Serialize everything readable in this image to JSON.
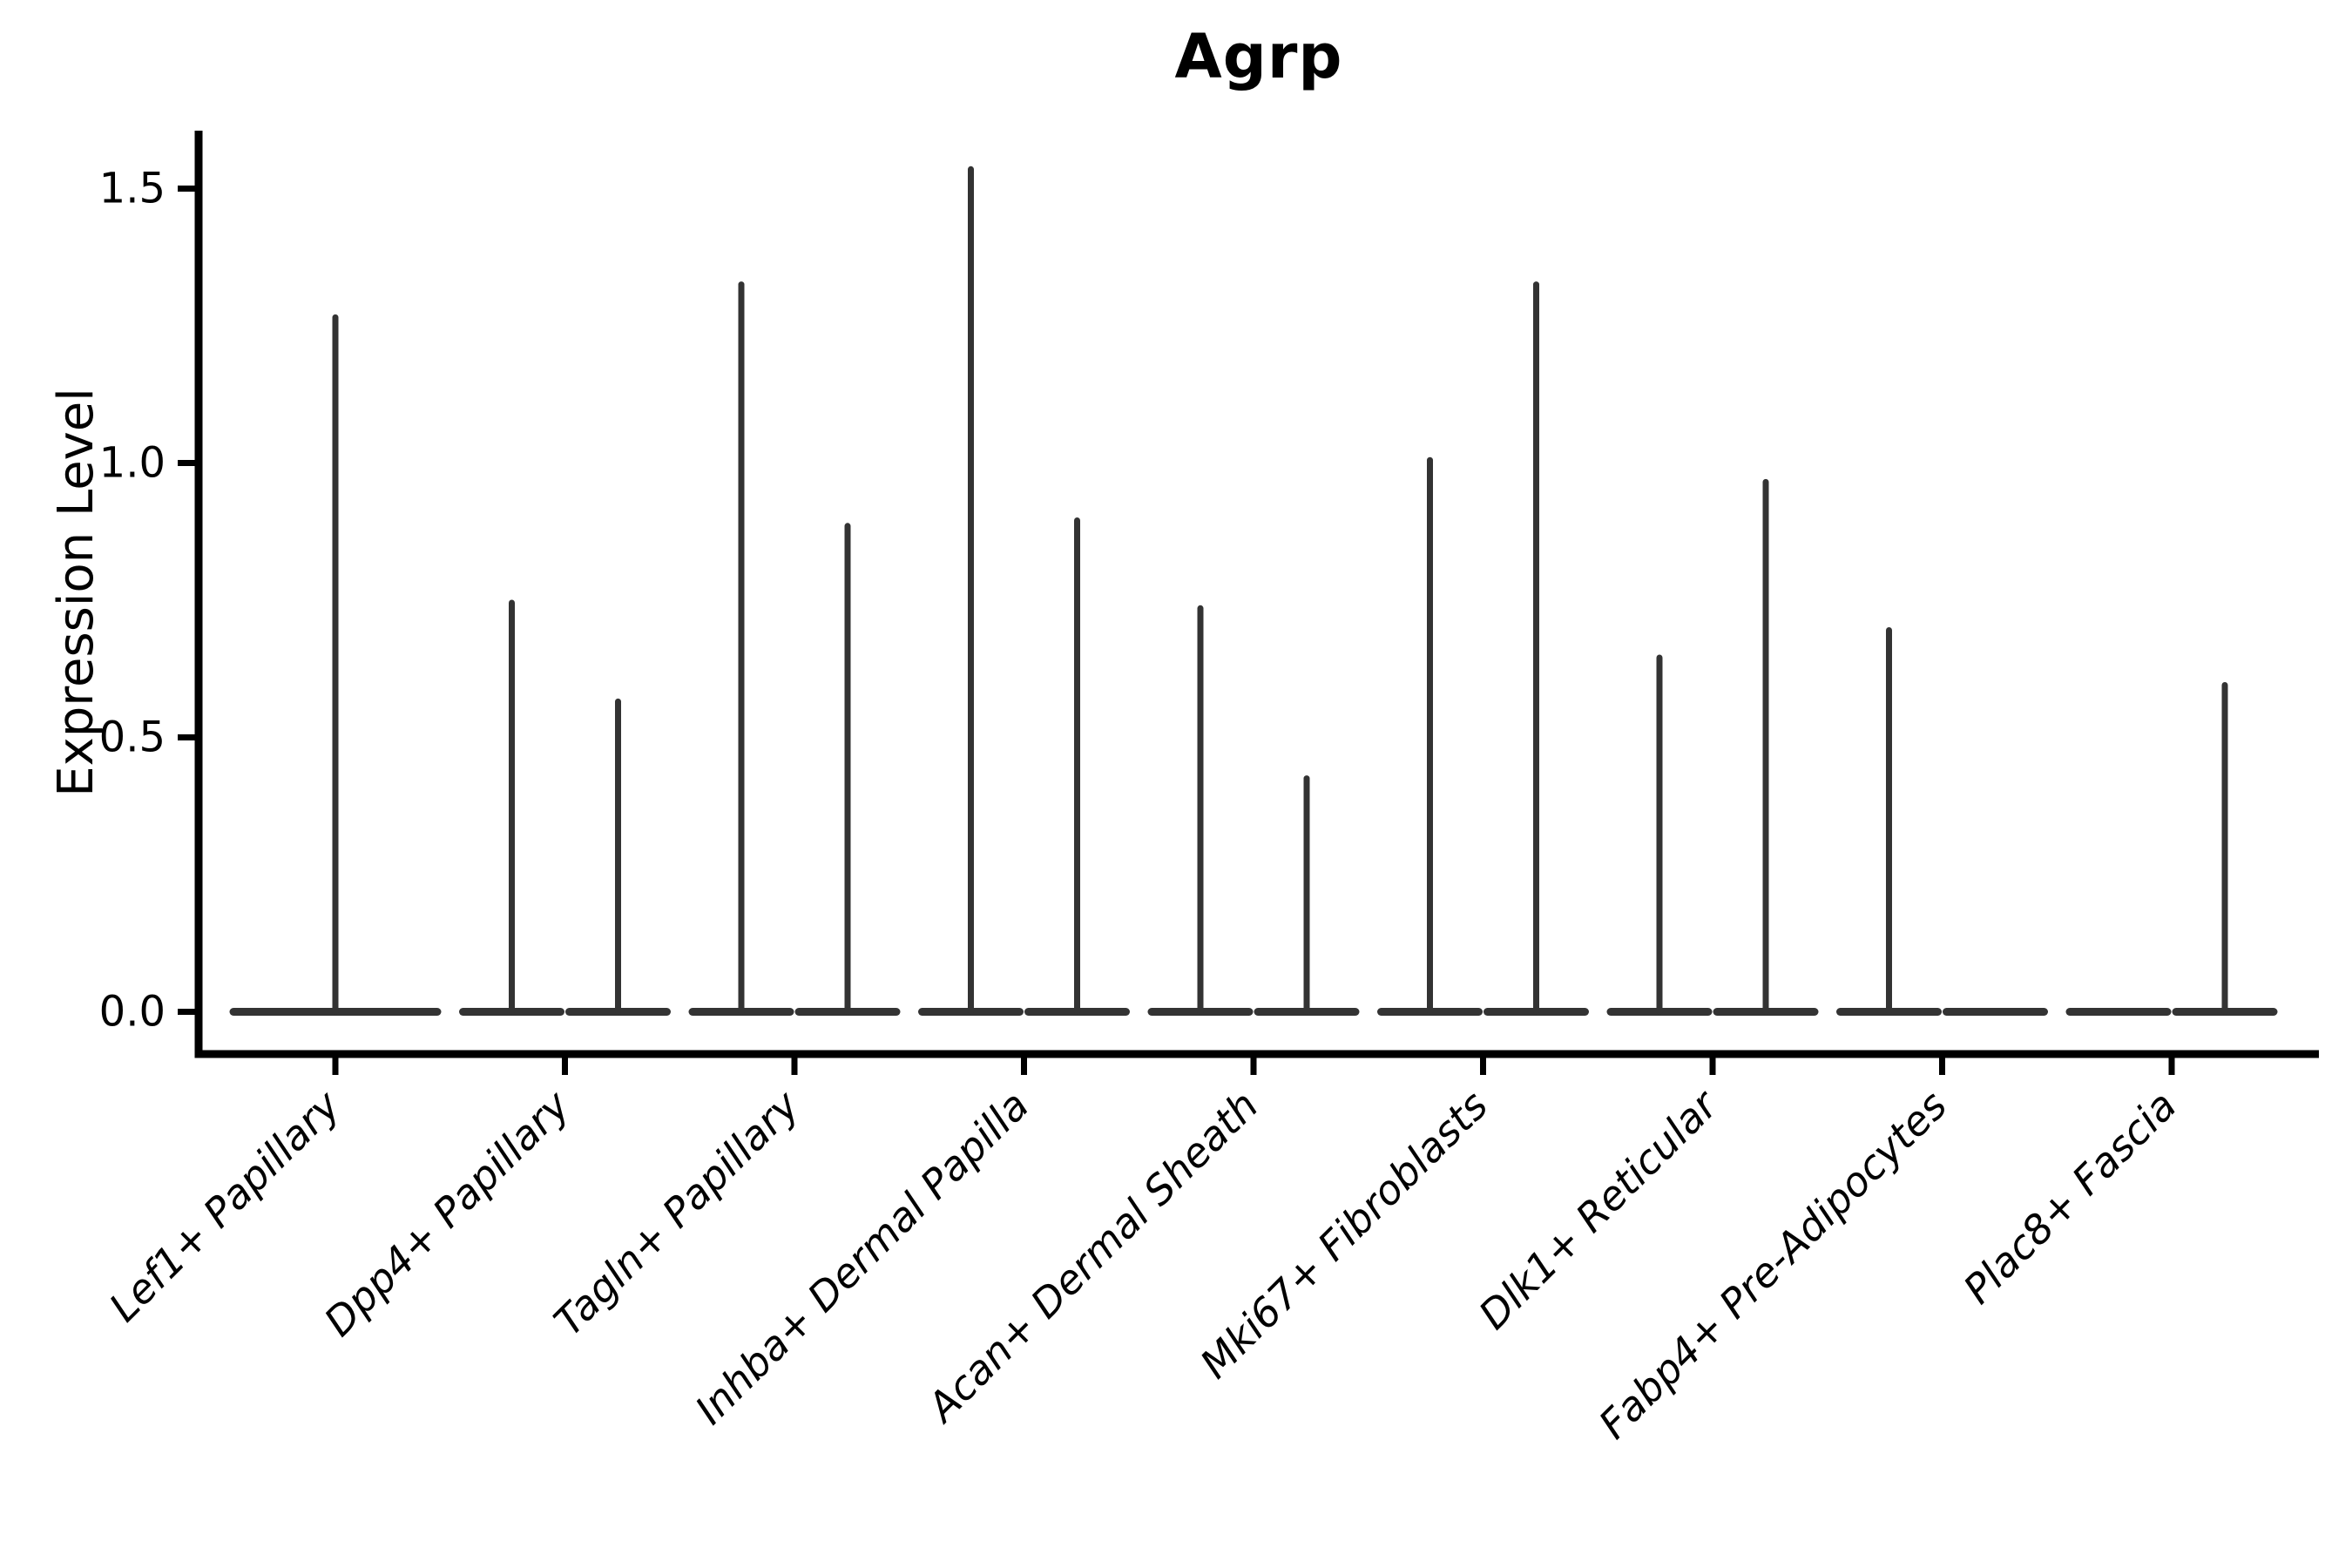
{
  "figure": {
    "background_color": "#ffffff"
  },
  "chart_data": {
    "type": "violin",
    "title": "Agrp",
    "xlabel": "",
    "ylabel": "Expression Level",
    "ylim": [
      -0.08,
      1.61
    ],
    "yticks": [
      {
        "value": 0.0,
        "label": "0.0"
      },
      {
        "value": 0.5,
        "label": "0.5"
      },
      {
        "value": 1.0,
        "label": "1.0"
      },
      {
        "value": 1.5,
        "label": "1.5"
      }
    ],
    "grid": "off",
    "legend": "none",
    "x_tick_label_rotation_deg": 45,
    "x_tick_labels_italic": true,
    "categories": [
      "Lef1+ Papillary",
      "Dpp4+ Papillary",
      "Tagln+ Papillary",
      "Inhba+ Dermal Papilla",
      "Acan+ Dermal Sheath",
      "Mki67+ Fibroblasts",
      "Dlk1+ Reticular",
      "Fabp4+ Pre-Adipocytes",
      "Plac8+ Fascia"
    ],
    "violins": [
      {
        "category": "Lef1+ Papillary",
        "parts": [
          {
            "slot": "full",
            "max": 1.27
          }
        ]
      },
      {
        "category": "Dpp4+ Papillary",
        "parts": [
          {
            "slot": "left",
            "max": 0.75
          },
          {
            "slot": "right",
            "max": 0.57
          }
        ]
      },
      {
        "category": "Tagln+ Papillary",
        "parts": [
          {
            "slot": "left",
            "max": 1.33
          },
          {
            "slot": "right",
            "max": 0.89
          }
        ]
      },
      {
        "category": "Inhba+ Dermal Papilla",
        "parts": [
          {
            "slot": "left",
            "max": 1.54
          },
          {
            "slot": "right",
            "max": 0.9
          }
        ]
      },
      {
        "category": "Acan+ Dermal Sheath",
        "parts": [
          {
            "slot": "left",
            "max": 0.74
          },
          {
            "slot": "right",
            "max": 0.43
          }
        ]
      },
      {
        "category": "Mki67+ Fibroblasts",
        "parts": [
          {
            "slot": "left",
            "max": 1.01
          },
          {
            "slot": "right",
            "max": 1.33
          }
        ]
      },
      {
        "category": "Dlk1+ Reticular",
        "parts": [
          {
            "slot": "left",
            "max": 0.65
          },
          {
            "slot": "right",
            "max": 0.97
          }
        ]
      },
      {
        "category": "Fabp4+ Pre-Adipocytes",
        "parts": [
          {
            "slot": "left",
            "max": 0.7
          },
          {
            "slot": "right",
            "max": 0.0
          }
        ]
      },
      {
        "category": "Plac8+ Fascia",
        "parts": [
          {
            "slot": "left",
            "max": 0.0
          },
          {
            "slot": "right",
            "max": 0.6
          }
        ]
      }
    ],
    "colors": {
      "violin_stroke": "#333333",
      "axis_stroke": "#000000",
      "text_color": "#000000"
    }
  }
}
